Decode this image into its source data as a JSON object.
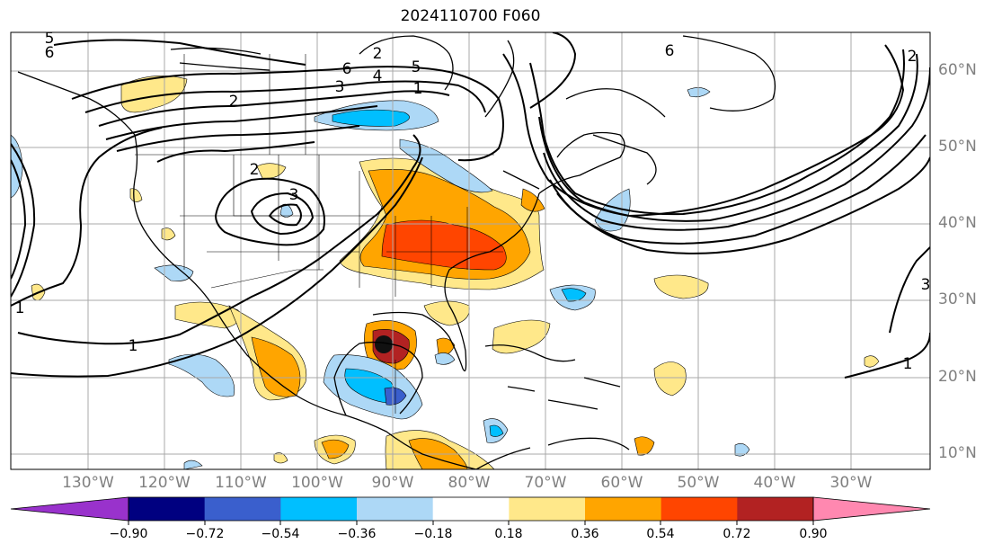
{
  "title": "2024110700 F060",
  "lon_labels": [
    "130°W",
    "120°W",
    "110°W",
    "100°W",
    "90°W",
    "80°W",
    "70°W",
    "60°W",
    "50°W",
    "40°W",
    "30°W"
  ],
  "lat_labels": [
    "60°N",
    "50°N",
    "40°N",
    "30°N",
    "20°N",
    "10°N"
  ],
  "colorbar": {
    "ticks": [
      "−0.90",
      "−0.72",
      "−0.54",
      "−0.36",
      "−0.18",
      "0.18",
      "0.36",
      "0.54",
      "0.72",
      "0.90"
    ],
    "colors": [
      "#9932cc",
      "#000080",
      "#3a5fcd",
      "#00bfff",
      "#add8f6",
      "#ffffff",
      "#ffe88a",
      "#ffa500",
      "#ff4500",
      "#b22222",
      "#ff88b0"
    ]
  },
  "contour_labels": [
    "5",
    "6",
    "6",
    "4",
    "5",
    "2",
    "3",
    "1",
    "6",
    "2",
    "2",
    "3",
    "1",
    "1",
    "3",
    "2",
    "1"
  ],
  "palette": {
    "grid": "#a8a8a8",
    "contour": "#000000",
    "coast": "#000000"
  }
}
